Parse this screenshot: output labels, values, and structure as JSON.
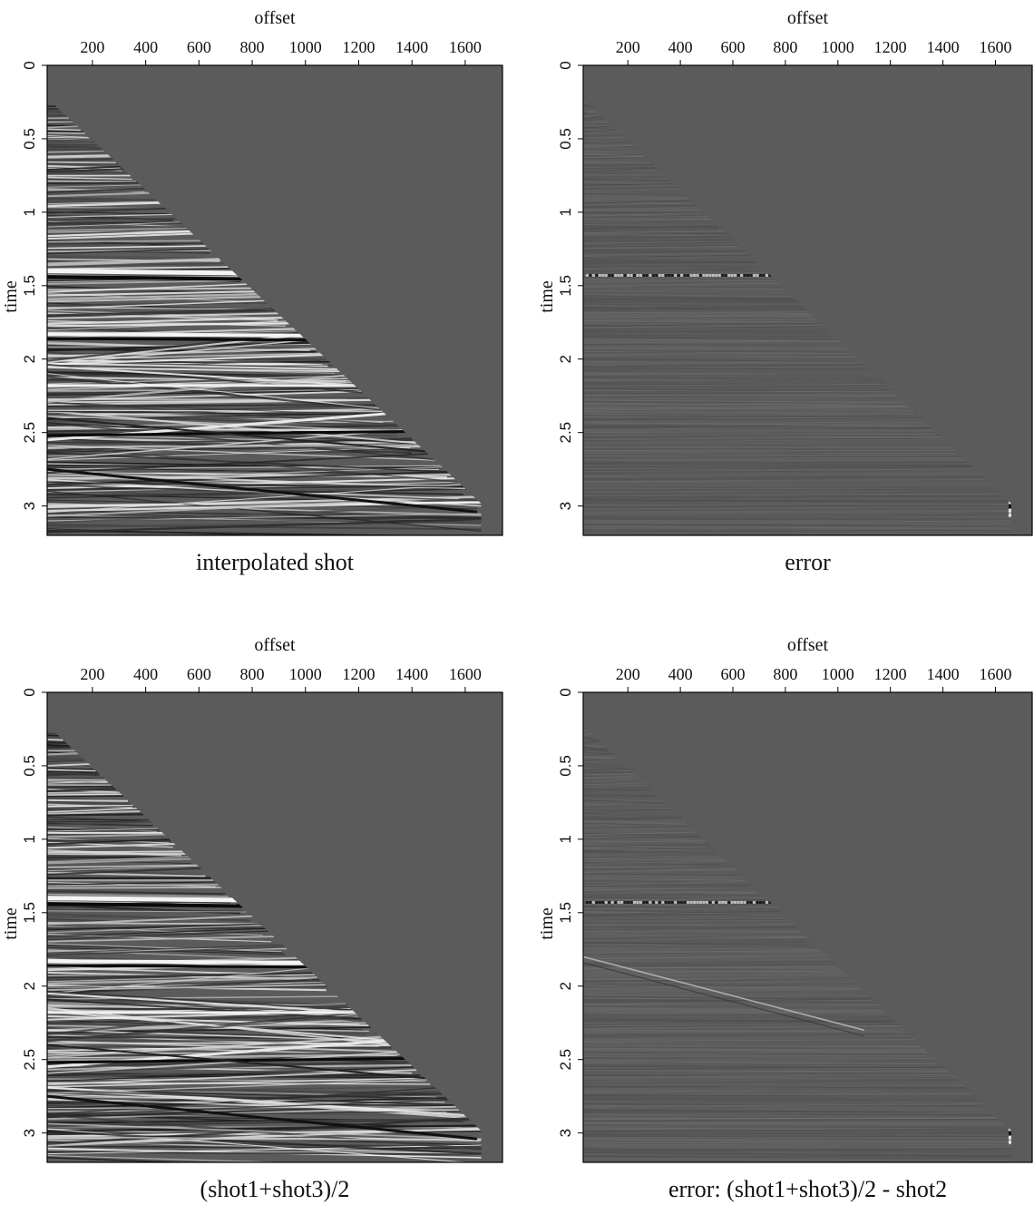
{
  "chart_data": [
    {
      "type": "heatmap",
      "title": "interpolated shot",
      "xlabel": "offset",
      "ylabel": "time",
      "x_ticks": [
        "200",
        "400",
        "600",
        "800",
        "1000",
        "1200",
        "1400",
        "1600"
      ],
      "y_ticks": [
        "0",
        "0.5",
        "1",
        "1.5",
        "2",
        "2.5",
        "3"
      ],
      "xlim": [
        30,
        1740
      ],
      "ylim": [
        0,
        3.2
      ],
      "kind": "gather",
      "colormap": "grayscale"
    },
    {
      "type": "heatmap",
      "title": "error",
      "xlabel": "offset",
      "ylabel": "time",
      "x_ticks": [
        "200",
        "400",
        "600",
        "800",
        "1000",
        "1200",
        "1400",
        "1600"
      ],
      "y_ticks": [
        "0",
        "0.5",
        "1",
        "1.5",
        "2",
        "2.5",
        "3"
      ],
      "xlim": [
        30,
        1740
      ],
      "ylim": [
        0,
        3.2
      ],
      "kind": "error-interp",
      "colormap": "grayscale"
    },
    {
      "type": "heatmap",
      "title": "(shot1+shot3)/2",
      "xlabel": "offset",
      "ylabel": "time",
      "x_ticks": [
        "200",
        "400",
        "600",
        "800",
        "1000",
        "1200",
        "1400",
        "1600"
      ],
      "y_ticks": [
        "0",
        "0.5",
        "1",
        "1.5",
        "2",
        "2.5",
        "3"
      ],
      "xlim": [
        30,
        1740
      ],
      "ylim": [
        0,
        3.2
      ],
      "kind": "gather",
      "colormap": "grayscale"
    },
    {
      "type": "heatmap",
      "title": "error: (shot1+shot3)/2 - shot2",
      "xlabel": "offset",
      "ylabel": "time",
      "x_ticks": [
        "200",
        "400",
        "600",
        "800",
        "1000",
        "1200",
        "1400",
        "1600"
      ],
      "y_ticks": [
        "0",
        "0.5",
        "1",
        "1.5",
        "2",
        "2.5",
        "3"
      ],
      "xlim": [
        30,
        1740
      ],
      "ylim": [
        0,
        3.2
      ],
      "kind": "error-avg",
      "colormap": "grayscale"
    }
  ],
  "colors": {
    "background": "#5b5b5b",
    "frame": "#000000",
    "strong_dark": "#0a0a0a",
    "strong_light": "#f4f4f4"
  }
}
